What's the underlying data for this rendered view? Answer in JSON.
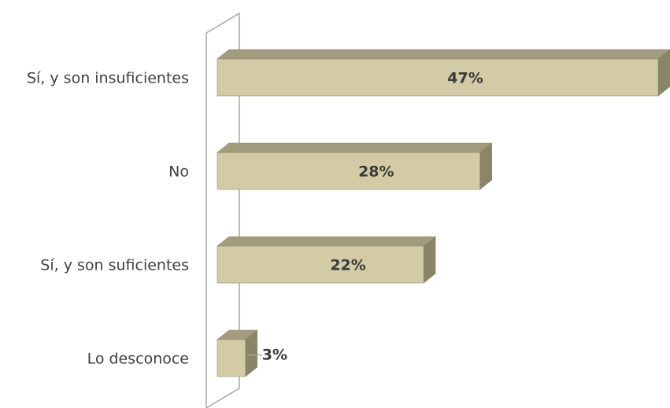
{
  "chart_data": {
    "type": "bar",
    "orientation": "horizontal",
    "style": "3d",
    "categories": [
      "Sí, y son insuficientes",
      "No",
      "Sí, y son suficientes",
      "Lo desconoce"
    ],
    "values": [
      47,
      28,
      22,
      3
    ],
    "data_labels": [
      "47%",
      "28%",
      "22%",
      "3%"
    ],
    "xlim": [
      0,
      47
    ],
    "grid": false,
    "legend": "none"
  },
  "colors": {
    "bar_front": "#d3cba6",
    "bar_top": "#a39b7d",
    "bar_side": "#8a8468",
    "bar_edge": "#8f896c",
    "wall_line": "#a6a6a6",
    "label_text": "#404040",
    "data_label_text": "#3a3a3a",
    "leader_line": "#a6a6a6"
  }
}
